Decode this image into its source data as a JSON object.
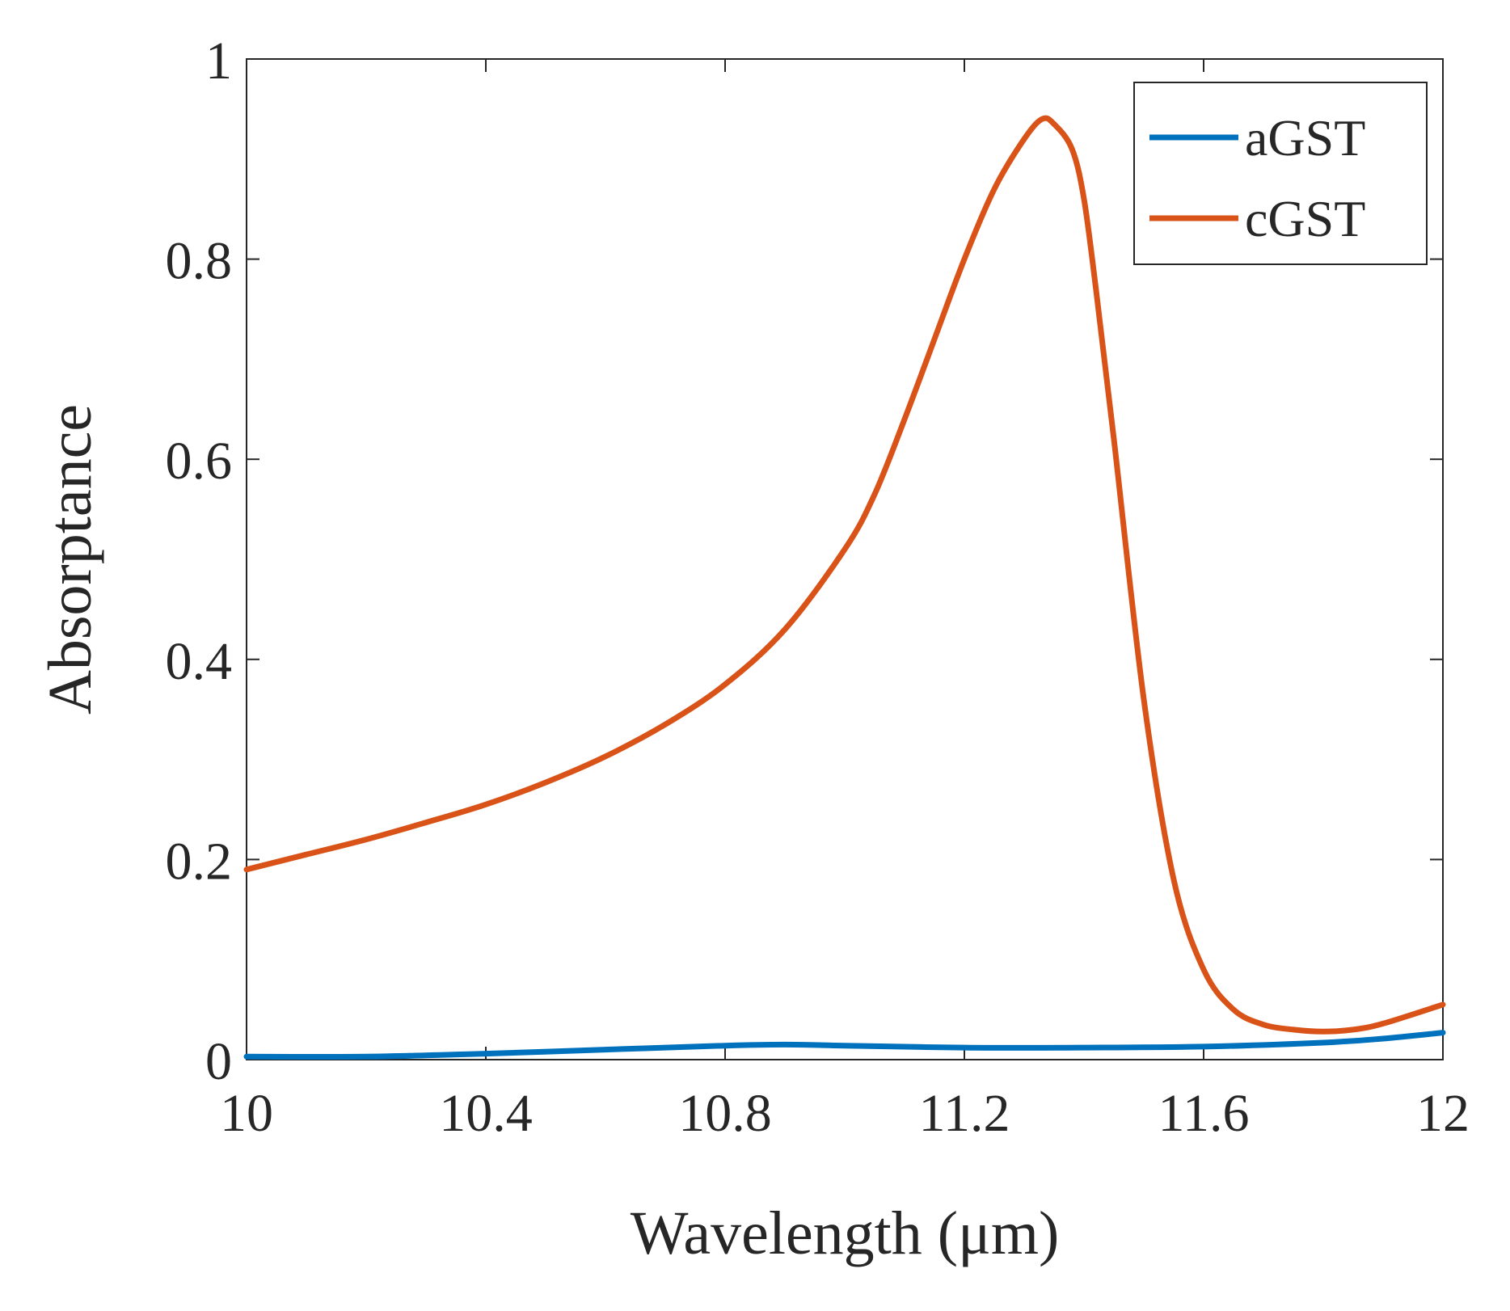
{
  "chart_data": {
    "type": "line",
    "title": "",
    "xlabel": "Wavelength (μm)",
    "ylabel": "Absorptance",
    "xlim": [
      10,
      12
    ],
    "ylim": [
      0,
      1
    ],
    "xticks": [
      10,
      10.4,
      10.8,
      11.2,
      11.6,
      12
    ],
    "xtick_labels": [
      "10",
      "10.4",
      "10.8",
      "11.2",
      "11.6",
      "12"
    ],
    "yticks": [
      0,
      0.2,
      0.4,
      0.6,
      0.8,
      1
    ],
    "ytick_labels": [
      "0",
      "0.2",
      "0.4",
      "0.6",
      "0.8",
      "1"
    ],
    "grid": false,
    "legend_position": "top-right",
    "series": [
      {
        "name": "aGST",
        "color": "#0072BD",
        "x": [
          10.0,
          10.2,
          10.4,
          10.6,
          10.8,
          10.9,
          11.0,
          11.2,
          11.4,
          11.6,
          11.8,
          11.9,
          12.0
        ],
        "y": [
          0.003,
          0.003,
          0.006,
          0.01,
          0.014,
          0.015,
          0.014,
          0.012,
          0.012,
          0.013,
          0.017,
          0.021,
          0.027
        ]
      },
      {
        "name": "cGST",
        "color": "#D95319",
        "x": [
          10.0,
          10.1,
          10.2,
          10.3,
          10.4,
          10.5,
          10.6,
          10.7,
          10.8,
          10.9,
          11.0,
          11.05,
          11.1,
          11.15,
          11.2,
          11.25,
          11.3,
          11.33,
          11.35,
          11.38,
          11.4,
          11.42,
          11.45,
          11.5,
          11.55,
          11.6,
          11.65,
          11.7,
          11.75,
          11.8,
          11.85,
          11.9,
          12.0
        ],
        "y": [
          0.19,
          0.205,
          0.22,
          0.237,
          0.255,
          0.277,
          0.303,
          0.335,
          0.375,
          0.43,
          0.51,
          0.565,
          0.64,
          0.72,
          0.8,
          0.87,
          0.92,
          0.94,
          0.935,
          0.91,
          0.86,
          0.77,
          0.62,
          0.36,
          0.18,
          0.09,
          0.05,
          0.035,
          0.03,
          0.028,
          0.03,
          0.036,
          0.055
        ]
      }
    ]
  }
}
